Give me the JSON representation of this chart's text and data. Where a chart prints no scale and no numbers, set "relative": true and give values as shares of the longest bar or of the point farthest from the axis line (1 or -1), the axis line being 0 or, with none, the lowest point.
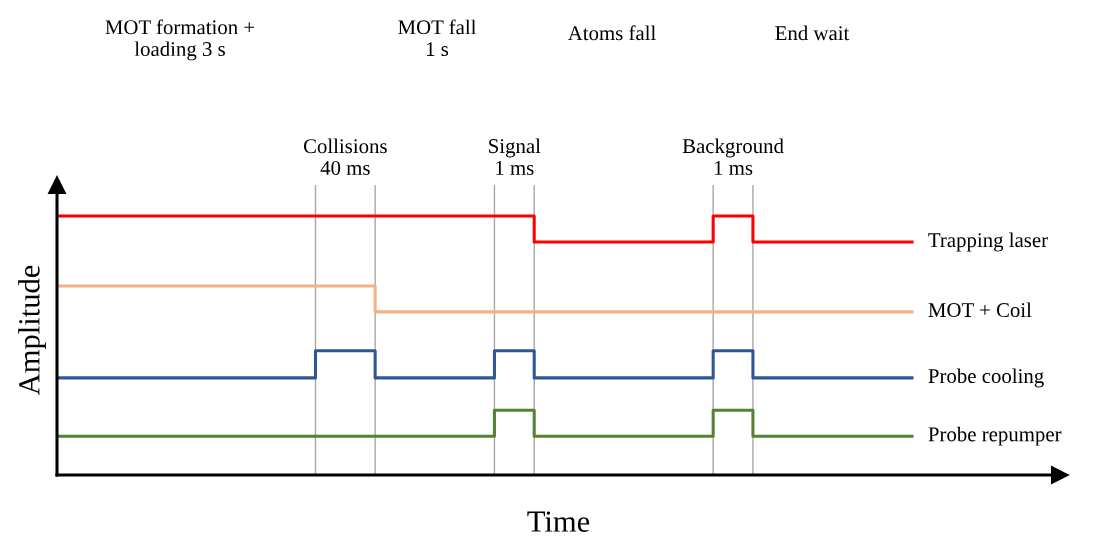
{
  "chart_data": {
    "type": "step",
    "relative": true,
    "xlabel": "Time",
    "ylabel": "Amplitude",
    "grid": "x",
    "legend": false,
    "categories": [
      null,
      null,
      null,
      null,
      null,
      null,
      null,
      null,
      null,
      null,
      null,
      null,
      null,
      null,
      null,
      null,
      null,
      null,
      null,
      null,
      null,
      null,
      null,
      null,
      null,
      null,
      null,
      null,
      null,
      null,
      null,
      null,
      null,
      null,
      null,
      null,
      null,
      null,
      null,
      null,
      null,
      null,
      null,
      null
    ],
    "series": [
      {
        "name": "Trapping laser",
        "color": "#ff0000",
        "values": [
          1,
          1,
          1,
          1,
          1,
          1,
          1,
          1,
          1,
          1,
          1,
          1,
          1,
          1,
          1,
          1,
          1,
          1,
          1,
          1,
          1,
          1,
          1,
          1,
          0.9,
          0.9,
          0.9,
          0.9,
          0.9,
          0.9,
          0.9,
          0.9,
          0.9,
          1,
          1,
          0.9,
          0.9,
          0.9,
          0.9,
          0.9,
          0.9,
          0.9,
          0.9,
          0.9
        ]
      },
      {
        "name": "MOT + Coil",
        "color": "#f4b183",
        "values": [
          0.73,
          0.73,
          0.73,
          0.73,
          0.73,
          0.73,
          0.73,
          0.73,
          0.73,
          0.73,
          0.73,
          0.73,
          0.73,
          0.73,
          0.73,
          0.73,
          0.63,
          0.63,
          0.63,
          0.63,
          0.63,
          0.63,
          0.63,
          0.63,
          0.63,
          0.63,
          0.63,
          0.63,
          0.63,
          0.63,
          0.63,
          0.63,
          0.63,
          0.63,
          0.63,
          0.63,
          0.63,
          0.63,
          0.63,
          0.63,
          0.63,
          0.63,
          0.63,
          0.63
        ]
      },
      {
        "name": "Probe cooling",
        "color": "#2f5597",
        "values": [
          0.375,
          0.375,
          0.375,
          0.375,
          0.375,
          0.375,
          0.375,
          0.375,
          0.375,
          0.375,
          0.375,
          0.375,
          0.375,
          0.48,
          0.48,
          0.48,
          0.375,
          0.375,
          0.375,
          0.375,
          0.375,
          0.375,
          0.48,
          0.48,
          0.375,
          0.375,
          0.375,
          0.375,
          0.375,
          0.375,
          0.375,
          0.375,
          0.375,
          0.48,
          0.48,
          0.375,
          0.375,
          0.375,
          0.375,
          0.375,
          0.375,
          0.375,
          0.375,
          0.375
        ]
      },
      {
        "name": "Probe repumper",
        "color": "#548235",
        "values": [
          0.15,
          0.15,
          0.15,
          0.15,
          0.15,
          0.15,
          0.15,
          0.15,
          0.15,
          0.15,
          0.15,
          0.15,
          0.15,
          0.15,
          0.15,
          0.15,
          0.15,
          0.15,
          0.15,
          0.15,
          0.15,
          0.15,
          0.25,
          0.25,
          0.15,
          0.15,
          0.15,
          0.15,
          0.15,
          0.15,
          0.15,
          0.15,
          0.15,
          0.25,
          0.25,
          0.15,
          0.15,
          0.15,
          0.15,
          0.15,
          0.15,
          0.15,
          0.15,
          0.15
        ]
      }
    ],
    "annotations": [
      "MOT formation +\nloading 3 s",
      "MOT fall\n1 s",
      "Atoms fall",
      "End wait",
      "Collisions\n40 ms",
      "Signal\n1 ms",
      "Background\n1 ms"
    ]
  }
}
